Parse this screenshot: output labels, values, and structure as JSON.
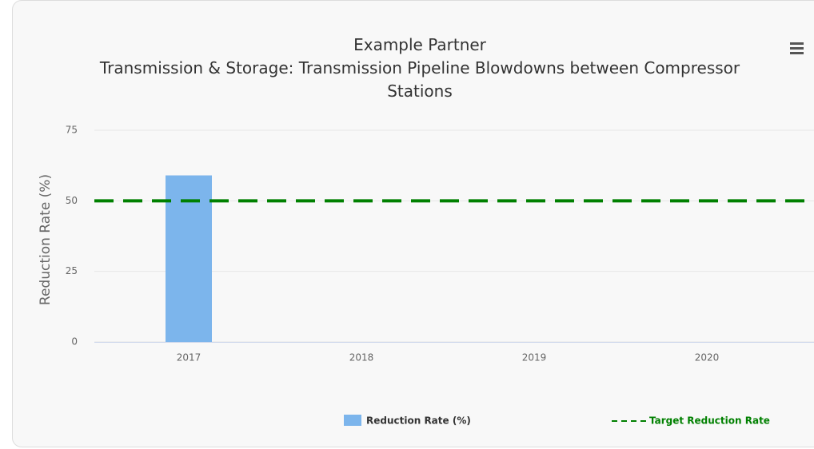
{
  "chart_data": {
    "type": "bar",
    "title": "Example Partner",
    "subtitle": "Transmission & Storage: Transmission Pipeline Blowdowns between Compressor Stations",
    "y_label": "Reduction Rate (%)",
    "categories": [
      "2017",
      "2018",
      "2019",
      "2020"
    ],
    "series": [
      {
        "name": "Reduction Rate (%)",
        "color": "#7cb5ec",
        "values": [
          59,
          null,
          null,
          null
        ]
      }
    ],
    "target": {
      "name": "Target Reduction Rate",
      "color": "#008000",
      "value": 50
    },
    "ylim": [
      0,
      75
    ],
    "yticks": [
      0,
      25,
      50,
      75
    ],
    "grid": true
  }
}
